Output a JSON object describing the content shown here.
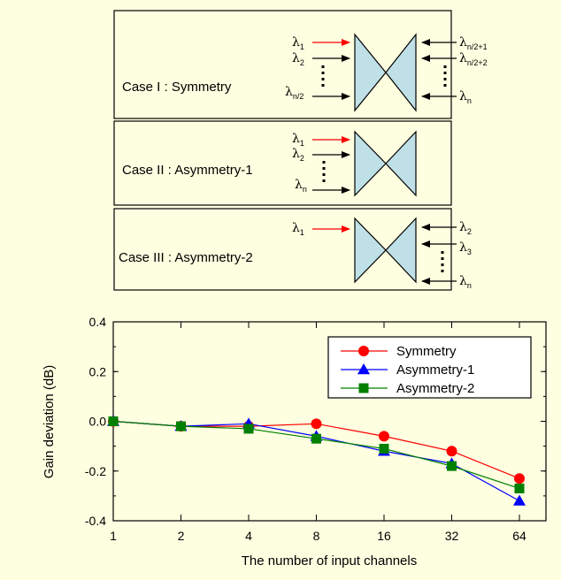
{
  "cases": [
    {
      "label": "Case I : Symmetry",
      "left_inputs": [
        {
          "sym": "λ",
          "sub": "1",
          "color": "#ff0000"
        },
        {
          "sym": "λ",
          "sub": "2",
          "color": "#000000"
        },
        {
          "sym": "λ",
          "sub": "n/2",
          "color": "#000000"
        }
      ],
      "right_inputs": [
        {
          "sym": "λ",
          "sub": "n/2+1"
        },
        {
          "sym": "λ",
          "sub": "n/2+2"
        },
        {
          "sym": "λ",
          "sub": "n"
        }
      ]
    },
    {
      "label": "Case II : Asymmetry-1",
      "left_inputs": [
        {
          "sym": "λ",
          "sub": "1",
          "color": "#ff0000"
        },
        {
          "sym": "λ",
          "sub": "2",
          "color": "#000000"
        },
        {
          "sym": "λ",
          "sub": "n",
          "color": "#000000"
        }
      ],
      "right_inputs": []
    },
    {
      "label": "Case III : Asymmetry-2",
      "left_inputs": [
        {
          "sym": "λ",
          "sub": "1",
          "color": "#ff0000"
        }
      ],
      "right_inputs": [
        {
          "sym": "λ",
          "sub": "2"
        },
        {
          "sym": "λ",
          "sub": "3"
        },
        {
          "sym": "λ",
          "sub": "n"
        }
      ]
    }
  ],
  "colors": {
    "background": "#fefee0",
    "amplifier_fill": "#bfe0e6",
    "symmetry": "#ff0000",
    "asymmetry1": "#0000ff",
    "asymmetry2": "#008000"
  },
  "chart_data": {
    "type": "line",
    "xlabel": "The number of input channels",
    "ylabel": "Gain deviation (dB)",
    "categories": [
      "1",
      "2",
      "4",
      "8",
      "16",
      "32",
      "64"
    ],
    "ylim": [
      -0.4,
      0.4
    ],
    "yticks": [
      "0.4",
      "0.2",
      "0.0",
      "-0.2",
      "-0.4"
    ],
    "legend_position": "top-right",
    "grid": false,
    "series": [
      {
        "name": "Symmetry",
        "marker": "circle",
        "color": "#ff0000",
        "values": [
          0.0,
          -0.02,
          -0.02,
          -0.01,
          -0.06,
          -0.12,
          -0.23
        ]
      },
      {
        "name": "Asymmetry-1",
        "marker": "triangle",
        "color": "#0000ff",
        "values": [
          0.0,
          -0.02,
          -0.01,
          -0.06,
          -0.12,
          -0.17,
          -0.32
        ]
      },
      {
        "name": "Asymmetry-2",
        "marker": "square",
        "color": "#008000",
        "values": [
          0.0,
          -0.02,
          -0.03,
          -0.07,
          -0.11,
          -0.18,
          -0.27
        ]
      }
    ]
  }
}
